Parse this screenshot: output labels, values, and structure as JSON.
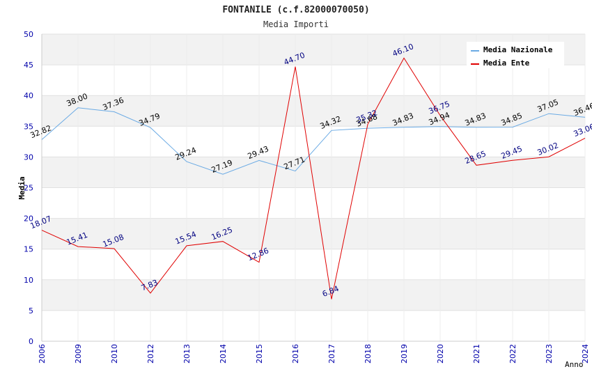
{
  "chart_data": {
    "type": "line",
    "title": "FONTANILE (c.f.82000070050)",
    "subtitle": "Media Importi",
    "xlabel": "Anno",
    "ylabel": "Media",
    "ylim": [
      0,
      50
    ],
    "yticks": [
      "0",
      "5",
      "10",
      "15",
      "20",
      "25",
      "30",
      "35",
      "40",
      "45",
      "50"
    ],
    "categories": [
      "2006",
      "2009",
      "2010",
      "2012",
      "2013",
      "2014",
      "2015",
      "2016",
      "2017",
      "2018",
      "2019",
      "2020",
      "2021",
      "2022",
      "2023",
      "2024"
    ],
    "grid": true,
    "legend_position": "top-right",
    "series": [
      {
        "name": "Media Nazionale",
        "color": "#6aaae4",
        "label_color": "#000000",
        "values": [
          32.82,
          38.0,
          37.36,
          34.79,
          29.24,
          27.19,
          29.43,
          27.71,
          34.32,
          34.68,
          34.83,
          34.94,
          34.83,
          34.85,
          37.05,
          36.46
        ],
        "labels": [
          "32.82",
          "38.00",
          "37.36",
          "34.79",
          "29.24",
          "27.19",
          "29.43",
          "27.71",
          "34.32",
          "34.68",
          "34.83",
          "34.94",
          "34.83",
          "34.85",
          "37.05",
          "36.46"
        ]
      },
      {
        "name": "Media Ente",
        "color": "#e00000",
        "label_color": "#000080",
        "values": [
          18.07,
          15.41,
          15.08,
          7.83,
          15.54,
          16.25,
          12.86,
          44.7,
          6.84,
          35.32,
          46.1,
          36.75,
          28.65,
          29.45,
          30.02,
          33.06
        ],
        "labels": [
          "18.07",
          "15.41",
          "15.08",
          "7.83",
          "15.54",
          "16.25",
          "12.86",
          "44.70",
          "6.84",
          "35.32",
          "46.10",
          "36.75",
          "28.65",
          "29.45",
          "30.02",
          "33.06"
        ]
      }
    ]
  }
}
